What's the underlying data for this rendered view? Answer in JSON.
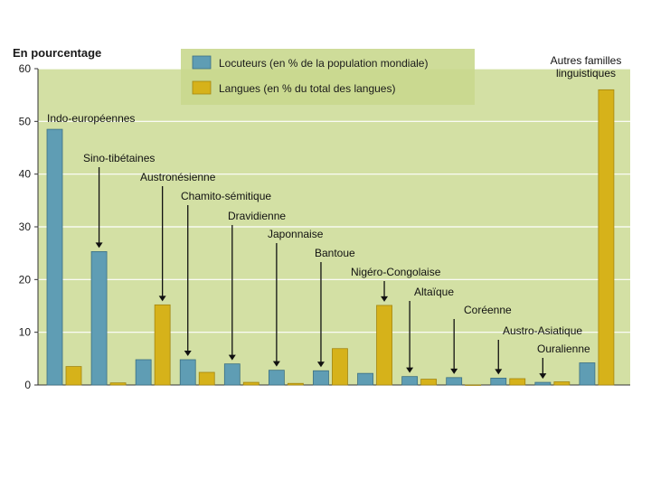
{
  "chart_data": {
    "type": "bar",
    "ylabel": "En pourcentage",
    "ylim": [
      0,
      60
    ],
    "yticks": [
      0,
      10,
      20,
      30,
      40,
      50,
      60
    ],
    "grid": true,
    "legend_position": "top-center",
    "categories": [
      "Indo-européennes",
      "Sino-tibétaines",
      "Austronésienne",
      "Chamito-sémitique",
      "Dravidienne",
      "Japonnaise",
      "Bantoue",
      "Nigéro-Congolaise",
      "Altaïque",
      "Coréenne",
      "Austro-Asiatique",
      "Ouralienne",
      "Autres familles linguistiques"
    ],
    "series": [
      {
        "name": "Locuteurs (en % de la population mondiale)",
        "color": "#5f9db4",
        "values": [
          48.5,
          25.3,
          4.8,
          4.8,
          4.0,
          2.8,
          2.7,
          2.2,
          1.6,
          1.4,
          1.3,
          0.5,
          4.2
        ]
      },
      {
        "name": "Langues (en % du total des langues)",
        "color": "#d6b21a",
        "values": [
          3.5,
          0.4,
          15.2,
          2.4,
          0.5,
          0.3,
          6.9,
          15.1,
          1.1,
          0.0,
          1.2,
          0.6,
          56.0
        ]
      }
    ]
  }
}
